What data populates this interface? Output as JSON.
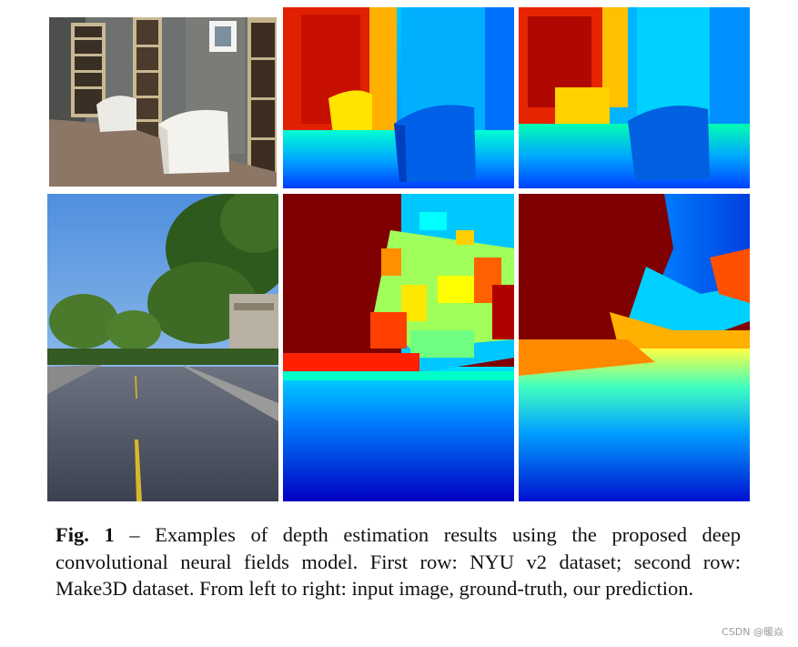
{
  "figure": {
    "caption": {
      "label": "Fig. 1",
      "text": " – Examples of depth estimation results using the proposed deep convolutional neural fields model. First row: NYU v2 dataset; second row: Make3D dataset. From left to right: input image, ground-truth, our prediction."
    },
    "colors": {
      "jet_dark_red": "#7f0000",
      "jet_red": "#ff2a00",
      "jet_orange": "#ff9a00",
      "jet_yellow": "#ffff00",
      "jet_cyan": "#00e5ff",
      "jet_blue": "#0050ff",
      "jet_dark_blue": "#0000a8"
    }
  },
  "watermark": "CSDN @暖焱"
}
